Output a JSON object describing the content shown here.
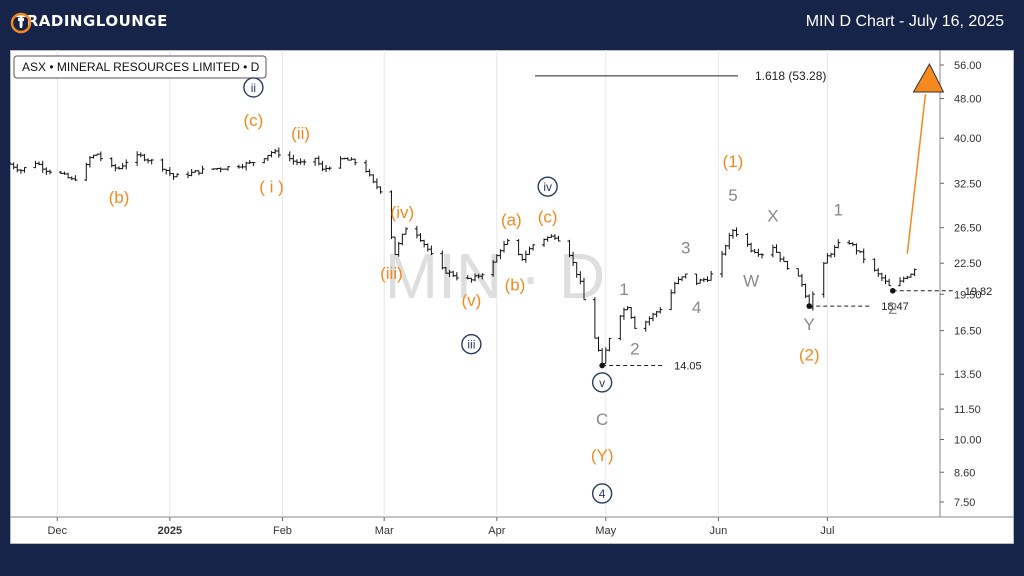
{
  "header": {
    "logo_text": "TRADINGLOUNGE",
    "title": "MIN D Chart - July 16, 2025"
  },
  "chart_data": {
    "type": "line",
    "symbol_label": "ASX • MINERAL RESOURCES LIMITED • D",
    "watermark": "MIN · D",
    "scale": "log",
    "ylim": [
      7.0,
      60.0
    ],
    "y_ticks": [
      56.0,
      48.0,
      40.0,
      32.5,
      26.5,
      22.5,
      19.5,
      16.5,
      13.5,
      11.5,
      10.0,
      8.6,
      7.5
    ],
    "y_tick_labels": [
      "56.00",
      "48.00",
      "40.00",
      "32.50",
      "26.50",
      "22.50",
      "19.50",
      "16.50",
      "13.50",
      "11.50",
      "10.00",
      "8.60",
      "7.50"
    ],
    "x_range": [
      "2024-11-18",
      "2025-08-01"
    ],
    "x_ticks": [
      {
        "date": "2024-12-01",
        "label": "Dec",
        "bold": false
      },
      {
        "date": "2025-01-01",
        "label": "2025",
        "bold": true
      },
      {
        "date": "2025-02-01",
        "label": "Feb",
        "bold": false
      },
      {
        "date": "2025-03-01",
        "label": "Mar",
        "bold": false
      },
      {
        "date": "2025-04-01",
        "label": "Apr",
        "bold": false
      },
      {
        "date": "2025-05-01",
        "label": "May",
        "bold": false
      },
      {
        "date": "2025-06-01",
        "label": "Jun",
        "bold": false
      },
      {
        "date": "2025-07-01",
        "label": "Jul",
        "bold": false
      }
    ],
    "price_path": [
      [
        "2024-11-18",
        35.5
      ],
      [
        "2024-11-21",
        34.5
      ],
      [
        "2024-11-25",
        35.8
      ],
      [
        "2024-11-28",
        34.6
      ],
      [
        "2024-12-02",
        33.9
      ],
      [
        "2024-12-05",
        33.0
      ],
      [
        "2024-12-08",
        33.8
      ],
      [
        "2024-12-10",
        36.5
      ],
      [
        "2024-12-12",
        37.2
      ],
      [
        "2024-12-15",
        35.0
      ],
      [
        "2024-12-18",
        34.8
      ],
      [
        "2024-12-21",
        36.5
      ],
      [
        "2024-12-24",
        36.8
      ],
      [
        "2024-12-27",
        36.0
      ],
      [
        "2024-12-30",
        35.0
      ],
      [
        "2025-01-02",
        33.5
      ],
      [
        "2025-01-05",
        33.8
      ],
      [
        "2025-01-08",
        34.2
      ],
      [
        "2025-01-11",
        34.6
      ],
      [
        "2025-01-14",
        34.8
      ],
      [
        "2025-01-17",
        35.0
      ],
      [
        "2025-01-20",
        35.3
      ],
      [
        "2025-01-23",
        35.6
      ],
      [
        "2025-01-26",
        36.3
      ],
      [
        "2025-01-29",
        37.5
      ],
      [
        "2025-02-01",
        37.2
      ],
      [
        "2025-02-04",
        36.0
      ],
      [
        "2025-02-07",
        35.5
      ],
      [
        "2025-02-10",
        36.5
      ],
      [
        "2025-02-12",
        34.5
      ],
      [
        "2025-02-15",
        35.5
      ],
      [
        "2025-02-18",
        36.3
      ],
      [
        "2025-02-21",
        35.8
      ],
      [
        "2025-02-24",
        34.5
      ],
      [
        "2025-02-26",
        32.5
      ],
      [
        "2025-02-28",
        31.5
      ],
      [
        "2025-03-02",
        27.5
      ],
      [
        "2025-03-04",
        23.5
      ],
      [
        "2025-03-07",
        26.5
      ],
      [
        "2025-03-10",
        25.8
      ],
      [
        "2025-03-13",
        24.0
      ],
      [
        "2025-03-16",
        22.0
      ],
      [
        "2025-03-19",
        21.5
      ],
      [
        "2025-03-22",
        21.0
      ],
      [
        "2025-03-25",
        20.8
      ],
      [
        "2025-03-28",
        21.5
      ],
      [
        "2025-03-31",
        22.5
      ],
      [
        "2025-04-02",
        24.0
      ],
      [
        "2025-04-04",
        24.8
      ],
      [
        "2025-04-06",
        23.5
      ],
      [
        "2025-04-08",
        23.0
      ],
      [
        "2025-04-11",
        24.5
      ],
      [
        "2025-04-14",
        25.2
      ],
      [
        "2025-04-17",
        25.5
      ],
      [
        "2025-04-20",
        24.5
      ],
      [
        "2025-04-22",
        22.5
      ],
      [
        "2025-04-24",
        20.5
      ],
      [
        "2025-04-26",
        17.5
      ],
      [
        "2025-04-28",
        16.0
      ],
      [
        "2025-04-30",
        14.05
      ],
      [
        "2025-05-02",
        16.0
      ],
      [
        "2025-05-05",
        17.8
      ],
      [
        "2025-05-07",
        18.5
      ],
      [
        "2025-05-09",
        16.8
      ],
      [
        "2025-05-12",
        17.2
      ],
      [
        "2025-05-15",
        18.0
      ],
      [
        "2025-05-18",
        18.8
      ],
      [
        "2025-05-20",
        20.5
      ],
      [
        "2025-05-23",
        21.3
      ],
      [
        "2025-05-26",
        20.6
      ],
      [
        "2025-05-29",
        21.0
      ],
      [
        "2025-06-01",
        22.0
      ],
      [
        "2025-06-03",
        24.5
      ],
      [
        "2025-06-05",
        26.2
      ],
      [
        "2025-06-07",
        25.5
      ],
      [
        "2025-06-10",
        24.0
      ],
      [
        "2025-06-13",
        23.5
      ],
      [
        "2025-06-16",
        24.3
      ],
      [
        "2025-06-19",
        22.5
      ],
      [
        "2025-06-22",
        21.5
      ],
      [
        "2025-06-24",
        20.5
      ],
      [
        "2025-06-26",
        18.47
      ],
      [
        "2025-06-28",
        20.5
      ],
      [
        "2025-07-01",
        23.2
      ],
      [
        "2025-07-04",
        24.5
      ],
      [
        "2025-07-07",
        24.8
      ],
      [
        "2025-07-10",
        23.5
      ],
      [
        "2025-07-13",
        22.0
      ],
      [
        "2025-07-16",
        21.0
      ],
      [
        "2025-07-19",
        19.82
      ],
      [
        "2025-07-22",
        21.0
      ],
      [
        "2025-07-24",
        21.5
      ],
      [
        "2025-07-26",
        22.5
      ]
    ],
    "fib_level": {
      "label": "1.618 (53.28)",
      "value": 53.28
    },
    "support_levels": [
      {
        "label": "14.05",
        "value": 14.05,
        "date": "2025-04-30"
      },
      {
        "label": "18.47",
        "value": 18.47,
        "date": "2025-06-26"
      },
      {
        "label": "19.82",
        "value": 19.82,
        "date": "2025-07-19"
      }
    ],
    "wave_labels": [
      {
        "text": "ii",
        "circled": true,
        "color": "#2b3a60",
        "date": "2025-01-24",
        "price": 50.5
      },
      {
        "text": "(c)",
        "color": "#f5891f",
        "date": "2025-01-24",
        "price": 43.5
      },
      {
        "text": "(ii)",
        "color": "#f5891f",
        "date": "2025-02-06",
        "price": 41.0
      },
      {
        "text": "(b)",
        "color": "#f5891f",
        "date": "2024-12-18",
        "price": 30.5
      },
      {
        "text": "( i )",
        "color": "#f5891f",
        "date": "2025-01-29",
        "price": 32.0
      },
      {
        "text": "(iv)",
        "color": "#f5891f",
        "date": "2025-03-06",
        "price": 28.5
      },
      {
        "text": "(iii)",
        "color": "#f5891f",
        "date": "2025-03-03",
        "price": 21.5
      },
      {
        "text": "(v)",
        "color": "#f5891f",
        "date": "2025-03-25",
        "price": 19.0
      },
      {
        "text": "iii",
        "circled": true,
        "color": "#2b3a60",
        "date": "2025-03-25",
        "price": 15.5
      },
      {
        "text": "(a)",
        "color": "#f5891f",
        "date": "2025-04-05",
        "price": 27.5
      },
      {
        "text": "(b)",
        "color": "#f5891f",
        "date": "2025-04-06",
        "price": 20.4
      },
      {
        "text": "(c)",
        "color": "#f5891f",
        "date": "2025-04-15",
        "price": 27.9
      },
      {
        "text": "iv",
        "circled": true,
        "color": "#2b3a60",
        "date": "2025-04-15",
        "price": 32.0
      },
      {
        "text": "1",
        "color": "#8a8a8a",
        "date": "2025-05-06",
        "price": 20.0
      },
      {
        "text": "2",
        "color": "#8a8a8a",
        "date": "2025-05-09",
        "price": 15.2
      },
      {
        "text": "3",
        "color": "#8a8a8a",
        "date": "2025-05-23",
        "price": 24.2
      },
      {
        "text": "4",
        "color": "#8a8a8a",
        "date": "2025-05-26",
        "price": 18.4
      },
      {
        "text": "5",
        "color": "#8a8a8a",
        "date": "2025-06-05",
        "price": 30.8
      },
      {
        "text": "(1)",
        "color": "#f5891f",
        "date": "2025-06-05",
        "price": 36.0
      },
      {
        "text": "X",
        "color": "#8a8a8a",
        "date": "2025-06-16",
        "price": 28.0
      },
      {
        "text": "W",
        "color": "#8a8a8a",
        "date": "2025-06-10",
        "price": 20.8
      },
      {
        "text": "Y",
        "color": "#8a8a8a",
        "date": "2025-06-26",
        "price": 17.0
      },
      {
        "text": "(2)",
        "color": "#f5891f",
        "date": "2025-06-26",
        "price": 14.8
      },
      {
        "text": "1",
        "color": "#8a8a8a",
        "date": "2025-07-04",
        "price": 28.8
      },
      {
        "text": "2",
        "color": "#8a8a8a",
        "date": "2025-07-19",
        "price": 18.3
      },
      {
        "text": "v",
        "circled": true,
        "color": "#2b3a60",
        "date": "2025-04-30",
        "price": 13.0
      },
      {
        "text": "C",
        "color": "#8a8a8a",
        "date": "2025-04-30",
        "price": 11.0
      },
      {
        "text": "(Y)",
        "color": "#f5891f",
        "date": "2025-04-30",
        "price": 9.3
      },
      {
        "text": "4",
        "circled": true,
        "color": "#2b3a60",
        "date": "2025-04-30",
        "price": 7.8
      }
    ],
    "projection": {
      "from": [
        "2025-07-23",
        23.5
      ],
      "to": [
        "2025-07-28",
        49.0
      ],
      "color": "#f5891f"
    }
  }
}
